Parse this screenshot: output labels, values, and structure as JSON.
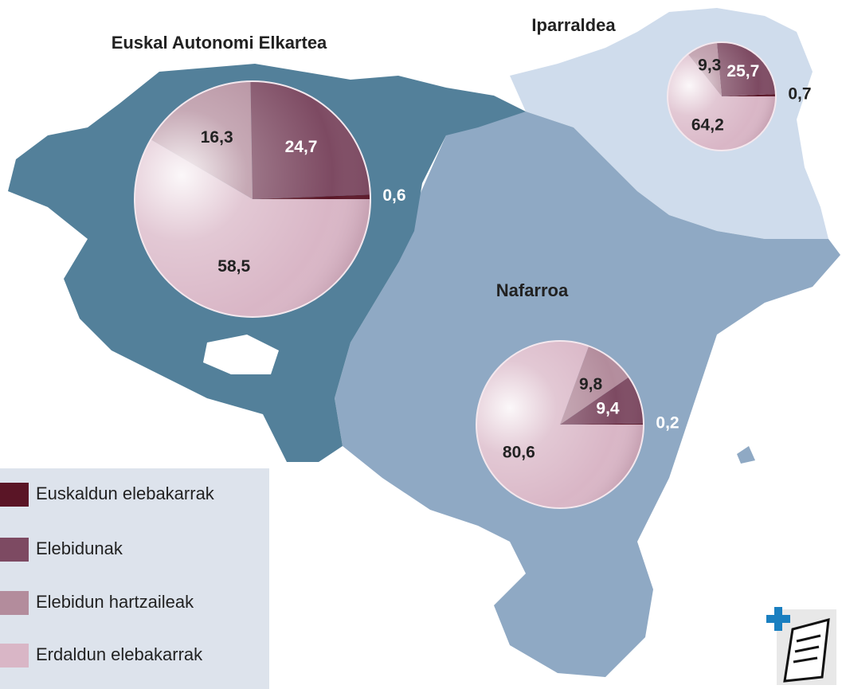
{
  "chart_data": [
    {
      "type": "pie",
      "title": "Euskal Autonomi Elkartea",
      "categories": [
        "Euskaldun elebakarrak",
        "Elebidunak",
        "Elebidun hartzaileak",
        "Erdaldun elebakarrak"
      ],
      "values": [
        0.6,
        24.7,
        16.3,
        58.5
      ],
      "value_labels": [
        "0,6",
        "24,7",
        "16,3",
        "58,5"
      ],
      "colors": [
        "#5a1526",
        "#7d4a62",
        "#b38c9c",
        "#d9b6c6"
      ]
    },
    {
      "type": "pie",
      "title": "Iparraldea",
      "categories": [
        "Euskaldun elebakarrak",
        "Elebidunak",
        "Elebidun hartzaileak",
        "Erdaldun elebakarrak"
      ],
      "values": [
        0.7,
        25.7,
        9.3,
        64.2
      ],
      "value_labels": [
        "0,7",
        "25,7",
        "9,3",
        "64,2"
      ],
      "colors": [
        "#5a1526",
        "#7d4a62",
        "#b38c9c",
        "#d9b6c6"
      ]
    },
    {
      "type": "pie",
      "title": "Nafarroa",
      "categories": [
        "Euskaldun elebakarrak",
        "Elebidunak",
        "Elebidun hartzaileak",
        "Erdaldun elebakarrak"
      ],
      "values": [
        0.2,
        9.4,
        9.8,
        80.6
      ],
      "value_labels": [
        "0,2",
        "9,4",
        "9,8",
        "80,6"
      ],
      "colors": [
        "#5a1526",
        "#7d4a62",
        "#b38c9c",
        "#d9b6c6"
      ]
    }
  ]
}
